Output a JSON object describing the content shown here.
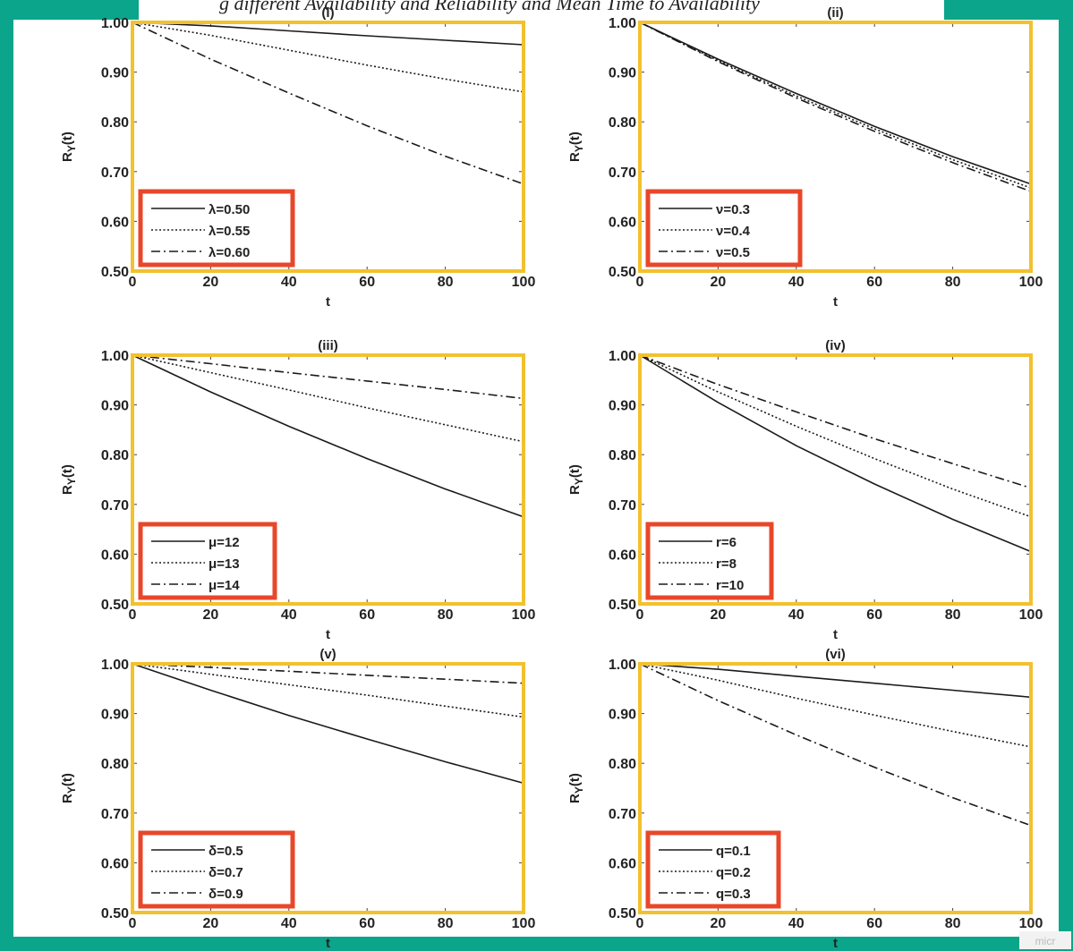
{
  "caption": "g different Availability and Reliability and Mean Time to Availability",
  "watermark": "micr",
  "colors": {
    "background": "#0aa58a",
    "plot_frame": "#f2c12e",
    "legend_frame": "#e8472a",
    "line": "#1a1a1a"
  },
  "chart_data": [
    {
      "type": "line",
      "title": "(i)",
      "xlabel": "t",
      "ylabel": "R_Y(t)",
      "xlim": [
        0,
        100
      ],
      "ylim": [
        0.5,
        1.0
      ],
      "xticks": [
        "0",
        "20",
        "40",
        "60",
        "80",
        "100"
      ],
      "yticks": [
        "0.50",
        "0.60",
        "0.70",
        "0.80",
        "0.90",
        "1.00"
      ],
      "legend": "bottom-left",
      "x": [
        0,
        20,
        40,
        60,
        80,
        100
      ],
      "series": [
        {
          "name": "λ=0.50",
          "style": "solid",
          "values": [
            1.0,
            0.993,
            0.983,
            0.973,
            0.964,
            0.955
          ]
        },
        {
          "name": "λ=0.55",
          "style": "dotted",
          "values": [
            1.0,
            0.974,
            0.944,
            0.914,
            0.886,
            0.86
          ]
        },
        {
          "name": "λ=0.60",
          "style": "dashdot",
          "values": [
            1.0,
            0.926,
            0.858,
            0.792,
            0.731,
            0.675
          ]
        }
      ]
    },
    {
      "type": "line",
      "title": "(ii)",
      "xlabel": "t",
      "ylabel": "R_Y(t)",
      "xlim": [
        0,
        100
      ],
      "ylim": [
        0.5,
        1.0
      ],
      "xticks": [
        "0",
        "20",
        "40",
        "60",
        "80",
        "100"
      ],
      "yticks": [
        "0.50",
        "0.60",
        "0.70",
        "0.80",
        "0.90",
        "1.00"
      ],
      "legend": "bottom-left",
      "x": [
        0,
        20,
        40,
        60,
        80,
        100
      ],
      "series": [
        {
          "name": "ν=0.3",
          "style": "solid",
          "values": [
            1.0,
            0.926,
            0.857,
            0.791,
            0.73,
            0.675
          ]
        },
        {
          "name": "ν=0.4",
          "style": "dotted",
          "values": [
            1.0,
            0.923,
            0.852,
            0.786,
            0.724,
            0.667
          ]
        },
        {
          "name": "ν=0.5",
          "style": "dashdot",
          "values": [
            1.0,
            0.921,
            0.848,
            0.781,
            0.718,
            0.66
          ]
        }
      ]
    },
    {
      "type": "line",
      "title": "(iii)",
      "xlabel": "t",
      "ylabel": "R_Y(t)",
      "xlim": [
        0,
        100
      ],
      "ylim": [
        0.5,
        1.0
      ],
      "xticks": [
        "0",
        "20",
        "40",
        "60",
        "80",
        "100"
      ],
      "yticks": [
        "0.50",
        "0.60",
        "0.70",
        "0.80",
        "0.90",
        "1.00"
      ],
      "legend": "bottom-left",
      "x": [
        0,
        20,
        40,
        60,
        80,
        100
      ],
      "series": [
        {
          "name": "μ=12",
          "style": "solid",
          "values": [
            1.0,
            0.926,
            0.857,
            0.792,
            0.731,
            0.675
          ]
        },
        {
          "name": "μ=13",
          "style": "dotted",
          "values": [
            1.0,
            0.965,
            0.93,
            0.894,
            0.86,
            0.826
          ]
        },
        {
          "name": "μ=14",
          "style": "dashdot",
          "values": [
            1.0,
            0.983,
            0.965,
            0.948,
            0.931,
            0.913
          ]
        }
      ]
    },
    {
      "type": "line",
      "title": "(iv)",
      "xlabel": "t",
      "ylabel": "R_Y(t)",
      "xlim": [
        0,
        100
      ],
      "ylim": [
        0.5,
        1.0
      ],
      "xticks": [
        "0",
        "20",
        "40",
        "60",
        "80",
        "100"
      ],
      "yticks": [
        "0.50",
        "0.60",
        "0.70",
        "0.80",
        "0.90",
        "1.00"
      ],
      "legend": "bottom-left",
      "x": [
        0,
        20,
        40,
        60,
        80,
        100
      ],
      "series": [
        {
          "name": "r=6",
          "style": "solid",
          "values": [
            1.0,
            0.905,
            0.818,
            0.741,
            0.67,
            0.605
          ]
        },
        {
          "name": "r=8",
          "style": "dotted",
          "values": [
            1.0,
            0.926,
            0.857,
            0.792,
            0.731,
            0.675
          ]
        },
        {
          "name": "r=10",
          "style": "dashdot",
          "values": [
            1.0,
            0.941,
            0.886,
            0.832,
            0.782,
            0.733
          ]
        }
      ]
    },
    {
      "type": "line",
      "title": "(v)",
      "xlabel": "t",
      "ylabel": "R_Y(t)",
      "xlim": [
        0,
        100
      ],
      "ylim": [
        0.5,
        1.0
      ],
      "xticks": [
        "0",
        "20",
        "40",
        "60",
        "80",
        "100"
      ],
      "yticks": [
        "0.50",
        "0.60",
        "0.70",
        "0.80",
        "0.90",
        "1.00"
      ],
      "legend": "bottom-left",
      "x": [
        0,
        20,
        40,
        60,
        80,
        100
      ],
      "series": [
        {
          "name": "δ=0.5",
          "style": "solid",
          "values": [
            1.0,
            0.947,
            0.896,
            0.849,
            0.803,
            0.76
          ]
        },
        {
          "name": "δ=0.7",
          "style": "dotted",
          "values": [
            1.0,
            0.979,
            0.958,
            0.937,
            0.915,
            0.893
          ]
        },
        {
          "name": "δ=0.9",
          "style": "dashdot",
          "values": [
            1.0,
            0.993,
            0.985,
            0.977,
            0.969,
            0.961
          ]
        }
      ]
    },
    {
      "type": "line",
      "title": "(vi)",
      "xlabel": "t",
      "ylabel": "R_Y(t)",
      "xlim": [
        0,
        100
      ],
      "ylim": [
        0.5,
        1.0
      ],
      "xticks": [
        "0",
        "20",
        "40",
        "60",
        "80",
        "100"
      ],
      "yticks": [
        "0.50",
        "0.60",
        "0.70",
        "0.80",
        "0.90",
        "1.00"
      ],
      "legend": "bottom-left",
      "x": [
        0,
        20,
        40,
        60,
        80,
        100
      ],
      "series": [
        {
          "name": "q=0.1",
          "style": "solid",
          "values": [
            1.0,
            0.989,
            0.975,
            0.961,
            0.947,
            0.933
          ]
        },
        {
          "name": "q=0.2",
          "style": "dotted",
          "values": [
            1.0,
            0.967,
            0.931,
            0.897,
            0.864,
            0.833
          ]
        },
        {
          "name": "q=0.3",
          "style": "dashdot",
          "values": [
            1.0,
            0.926,
            0.857,
            0.792,
            0.731,
            0.675
          ]
        }
      ]
    }
  ]
}
